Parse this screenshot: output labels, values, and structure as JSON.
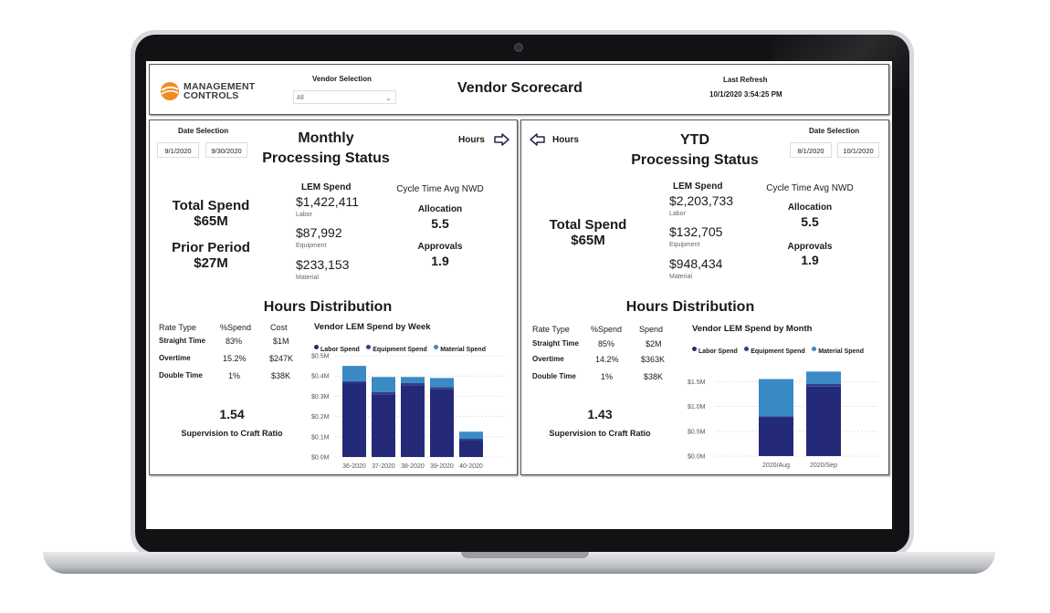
{
  "header": {
    "logo_line1": "MANAGEMENT",
    "logo_line2": "CONTROLS",
    "vendor_selection_label": "Vendor Selection",
    "vendor_selection_value": "All",
    "title": "Vendor Scorecard",
    "last_refresh_label": "Last Refresh",
    "last_refresh_value": "10/1/2020 3:54:25 PM"
  },
  "colors": {
    "labor": "#252a78",
    "equipment": "#2d3f8f",
    "material": "#3a8ac6",
    "logo_orange": "#f28a22"
  },
  "icons": {
    "right_arrow": "arrow-right-icon",
    "left_arrow": "arrow-left-icon"
  },
  "monthly": {
    "date_label": "Date Selection",
    "date_start": "9/1/2020",
    "date_end": "9/30/2020",
    "title_line1": "Monthly",
    "title_line2": "Processing Status",
    "nav_label": "Hours",
    "total_spend_label": "Total Spend",
    "total_spend_value": "$65M",
    "prior_period_label": "Prior Period",
    "prior_period_value": "$27M",
    "lem_spend_label": "LEM Spend",
    "labor_value": "$1,422,411",
    "labor_label": "Labor",
    "equipment_value": "$87,992",
    "equipment_label": "Equipment",
    "material_value": "$233,153",
    "material_label": "Material",
    "cycle_label": "Cycle Time Avg NWD",
    "allocation_label": "Allocation",
    "allocation_value": "5.5",
    "approvals_label": "Approvals",
    "approvals_value": "1.9",
    "hours_title": "Hours Distribution",
    "rate_table": {
      "headers": [
        "Rate Type",
        "%Spend",
        "Cost"
      ],
      "rows": [
        [
          "Straight Time",
          "83%",
          "$1M"
        ],
        [
          "Overtime",
          "15.2%",
          "$247K"
        ],
        [
          "Double Time",
          "1%",
          "$38K"
        ]
      ]
    },
    "ratio_value": "1.54",
    "ratio_label": "Supervision to Craft Ratio"
  },
  "ytd": {
    "nav_label": "Hours",
    "title_line1": "YTD",
    "title_line2": "Processing Status",
    "date_label": "Date Selection",
    "date_start": "8/1/2020",
    "date_end": "10/1/2020",
    "total_spend_label": "Total Spend",
    "total_spend_value": "$65M",
    "lem_spend_label": "LEM Spend",
    "labor_value": "$2,203,733",
    "labor_label": "Labor",
    "equipment_value": "$132,705",
    "equipment_label": "Equipment",
    "material_value": "$948,434",
    "material_label": "Material",
    "cycle_label": "Cycle Time Avg NWD",
    "allocation_label": "Allocation",
    "allocation_value": "5.5",
    "approvals_label": "Approvals",
    "approvals_value": "1.9",
    "hours_title": "Hours Distribution",
    "rate_table": {
      "headers": [
        "Rate Type",
        "%Spend",
        "Spend"
      ],
      "rows": [
        [
          "Straight Time",
          "85%",
          "$2M"
        ],
        [
          "Overtime",
          "14.2%",
          "$363K"
        ],
        [
          "Double Time",
          "1%",
          "$38K"
        ]
      ]
    },
    "ratio_value": "1.43",
    "ratio_label": "Supervision to Craft Ratio"
  },
  "chart_data": [
    {
      "type": "bar",
      "stacked": true,
      "title": "Vendor LEM Spend by Week",
      "categories": [
        "36-2020",
        "37-2020",
        "38-2020",
        "39-2020",
        "40-2020"
      ],
      "series": [
        {
          "name": "Labor Spend",
          "values": [
            0.365,
            0.31,
            0.355,
            0.335,
            0.085
          ]
        },
        {
          "name": "Equipment Spend",
          "values": [
            0.01,
            0.01,
            0.01,
            0.01,
            0.005
          ]
        },
        {
          "name": "Material Spend",
          "values": [
            0.075,
            0.075,
            0.03,
            0.045,
            0.035
          ]
        }
      ],
      "ylim": [
        0,
        0.5
      ],
      "yticks": [
        "$0.0M",
        "$0.1M",
        "$0.2M",
        "$0.3M",
        "$0.4M",
        "$0.5M"
      ],
      "ytick_values": [
        0,
        0.1,
        0.2,
        0.3,
        0.4,
        0.5
      ],
      "legend": "top",
      "grid": true
    },
    {
      "type": "bar",
      "stacked": true,
      "title": "Vendor LEM Spend by Month",
      "categories": [
        "2020/Aug",
        "2020/Sep"
      ],
      "series": [
        {
          "name": "Labor Spend",
          "values": [
            0.78,
            1.4
          ]
        },
        {
          "name": "Equipment Spend",
          "values": [
            0.02,
            0.05
          ]
        },
        {
          "name": "Material Spend",
          "values": [
            0.75,
            0.25
          ]
        }
      ],
      "ylim": [
        0,
        2.0
      ],
      "yticks": [
        "$0.0M",
        "$0.5M",
        "$1.0M",
        "$1.5M"
      ],
      "ytick_values": [
        0,
        0.5,
        1.0,
        1.5
      ],
      "legend": "top",
      "grid": true
    }
  ]
}
